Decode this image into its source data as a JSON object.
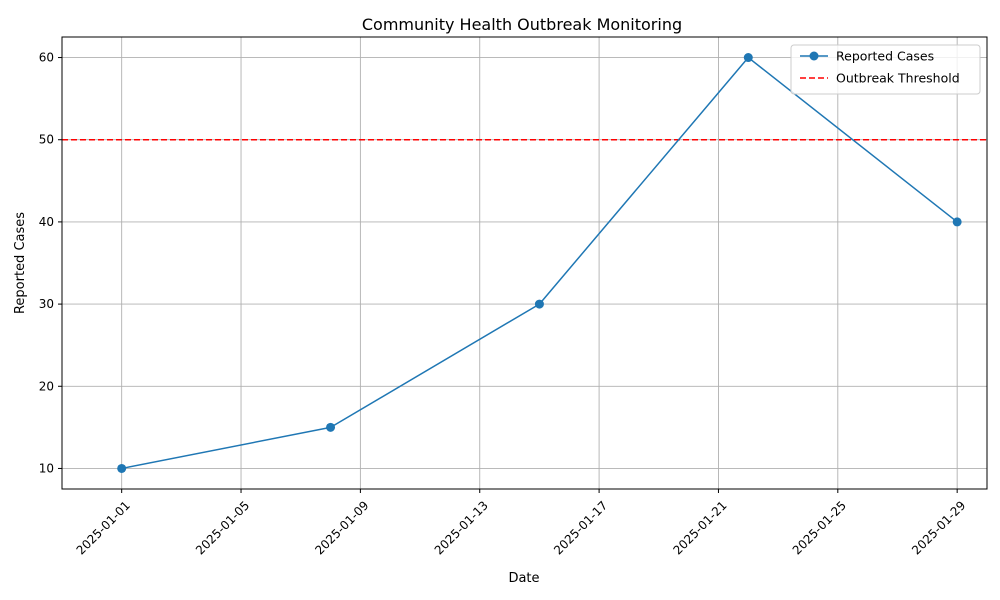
{
  "chart_data": {
    "type": "line",
    "title": "Community Health Outbreak Monitoring",
    "xlabel": "Date",
    "ylabel": "Reported Cases",
    "x": [
      "2025-01-01",
      "2025-01-08",
      "2025-01-15",
      "2025-01-22",
      "2025-01-29"
    ],
    "series": [
      {
        "name": "Reported Cases",
        "values": [
          10,
          15,
          30,
          60,
          40
        ],
        "color": "#1f77b4",
        "style": "solid",
        "marker": "circle"
      }
    ],
    "reference_lines": [
      {
        "name": "Outbreak Threshold",
        "y": 50,
        "color": "#ff0000",
        "style": "dashed"
      }
    ],
    "x_ticks": [
      "2025-01-01",
      "2025-01-05",
      "2025-01-09",
      "2025-01-13",
      "2025-01-17",
      "2025-01-21",
      "2025-01-25",
      "2025-01-29"
    ],
    "y_ticks": [
      10,
      20,
      30,
      40,
      50,
      60
    ],
    "xlim": [
      "2024-12-30",
      "2025-01-30"
    ],
    "ylim": [
      7.5,
      62.5
    ],
    "grid": true,
    "legend_position": "top-right"
  }
}
